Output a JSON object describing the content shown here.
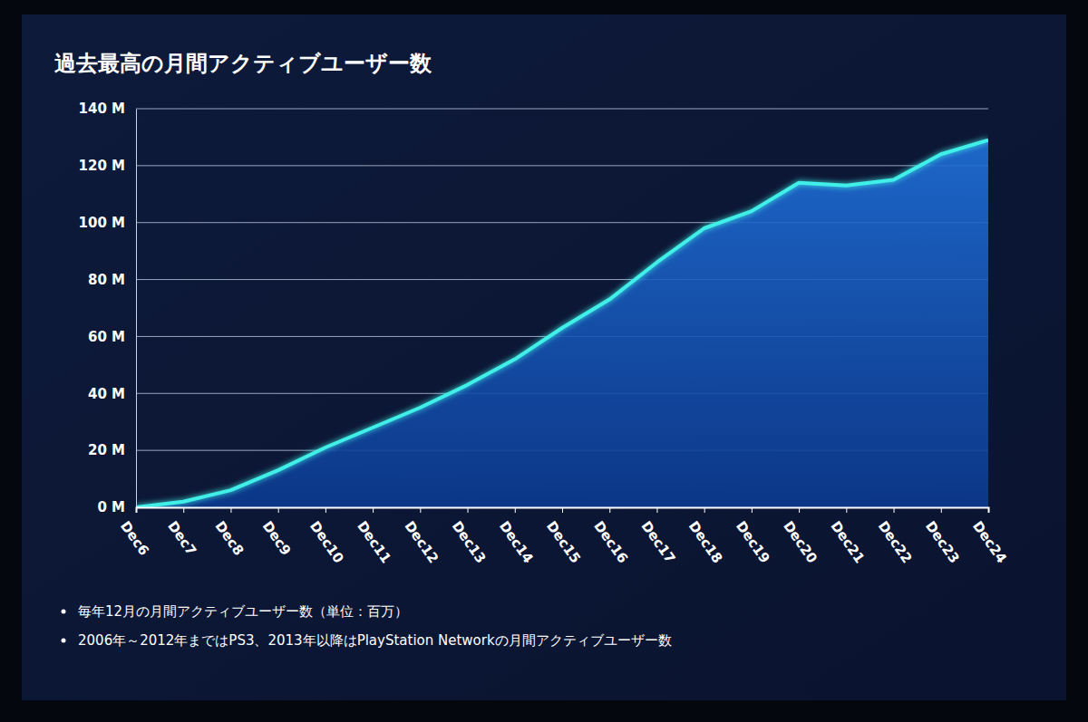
{
  "chart_data": {
    "type": "area",
    "title": "過去最高の月間アクティブユーザー数",
    "categories": [
      "Dec6",
      "Dec7",
      "Dec8",
      "Dec9",
      "Dec10",
      "Dec11",
      "Dec12",
      "Dec13",
      "Dec14",
      "Dec15",
      "Dec16",
      "Dec17",
      "Dec18",
      "Dec19",
      "Dec20",
      "Dec21",
      "Dec22",
      "Dec23",
      "Dec24"
    ],
    "values": [
      0,
      2,
      6,
      13,
      21,
      28,
      35,
      43,
      52,
      63,
      73,
      86,
      98,
      104,
      114,
      113,
      115,
      124,
      129
    ],
    "color": "#3ff0e8",
    "ylim": [
      0,
      140
    ],
    "yticks": [
      {
        "value": 0,
        "label": "0 M"
      },
      {
        "value": 20,
        "label": "20 M"
      },
      {
        "value": 40,
        "label": "40 M"
      },
      {
        "value": 60,
        "label": "60 M"
      },
      {
        "value": 80,
        "label": "80 M"
      },
      {
        "value": 100,
        "label": "100 M"
      },
      {
        "value": 120,
        "label": "120 M"
      },
      {
        "value": 140,
        "label": "140 M"
      }
    ],
    "grid": true,
    "annotations": [
      "毎年12月の月間アクティブユーザー数（単位：百万）",
      "2006年～2012年まではPS3、2013年以降はPlayStation Networkの月間アクティブユーザー数"
    ]
  }
}
